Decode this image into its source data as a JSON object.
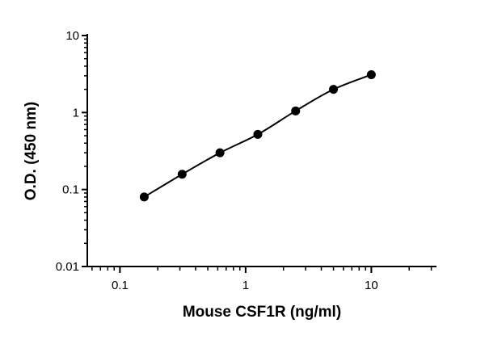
{
  "chart_data": {
    "type": "scatter",
    "title": "",
    "xlabel": "Mouse CSF1R (ng/ml)",
    "ylabel": "O.D. (450 nm)",
    "x_scale": "log",
    "y_scale": "log",
    "xlim": [
      0.055,
      33
    ],
    "ylim": [
      0.01,
      10
    ],
    "x_ticks": [
      {
        "value": 0.1,
        "label": "0.1"
      },
      {
        "value": 1,
        "label": "1"
      },
      {
        "value": 10,
        "label": "10"
      }
    ],
    "y_ticks": [
      {
        "value": 0.01,
        "label": "0.01"
      },
      {
        "value": 0.1,
        "label": "0.1"
      },
      {
        "value": 1,
        "label": "1"
      },
      {
        "value": 10,
        "label": "10"
      }
    ],
    "grid": false,
    "legend": "none",
    "series": [
      {
        "points": [
          {
            "x": 0.156,
            "y": 0.08
          },
          {
            "x": 0.3125,
            "y": 0.158
          },
          {
            "x": 0.625,
            "y": 0.3
          },
          {
            "x": 1.25,
            "y": 0.52
          },
          {
            "x": 2.5,
            "y": 1.05
          },
          {
            "x": 5,
            "y": 2.0
          },
          {
            "x": 10,
            "y": 3.1
          }
        ],
        "fit_curve": true,
        "color": "#000000"
      }
    ]
  }
}
